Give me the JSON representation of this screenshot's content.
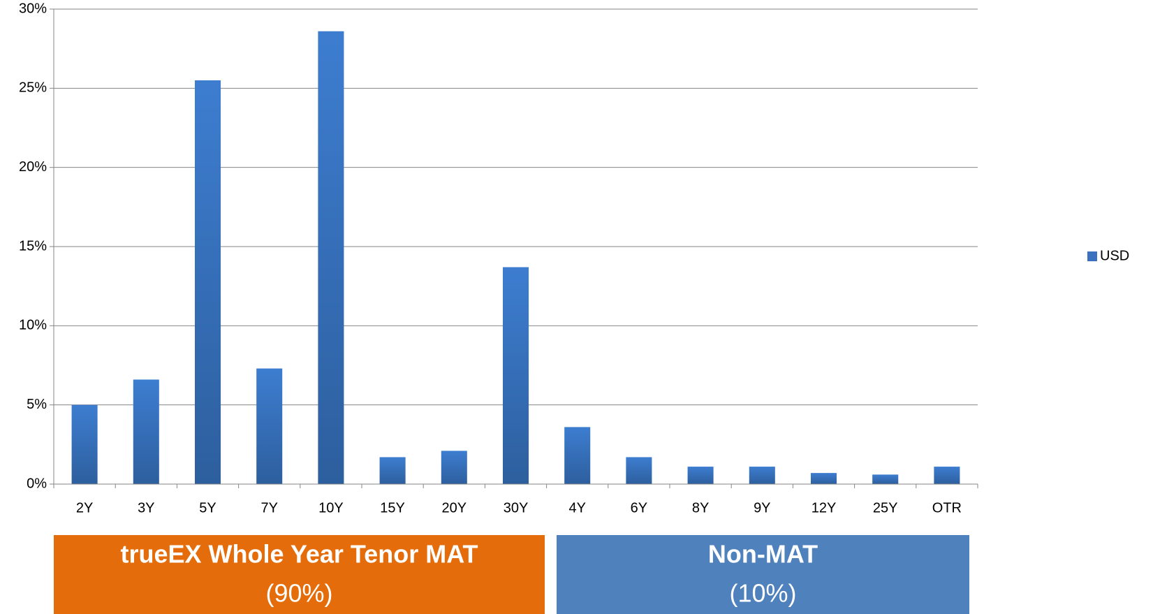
{
  "chart_data": {
    "type": "bar",
    "categories": [
      "2Y",
      "3Y",
      "5Y",
      "7Y",
      "10Y",
      "15Y",
      "20Y",
      "30Y",
      "4Y",
      "6Y",
      "8Y",
      "9Y",
      "12Y",
      "25Y",
      "OTR"
    ],
    "series": [
      {
        "name": "USD",
        "color": "#3a72c0",
        "values": [
          5.0,
          6.6,
          25.5,
          7.3,
          28.6,
          1.7,
          2.1,
          13.7,
          3.6,
          1.7,
          1.1,
          1.1,
          0.7,
          0.6,
          1.1
        ]
      }
    ],
    "ylim": [
      0,
      30
    ],
    "yticks": [
      {
        "value": 0,
        "label": "0%"
      },
      {
        "value": 5,
        "label": "5%"
      },
      {
        "value": 10,
        "label": "10%"
      },
      {
        "value": 15,
        "label": "15%"
      },
      {
        "value": 20,
        "label": "20%"
      },
      {
        "value": 25,
        "label": "25%"
      },
      {
        "value": 30,
        "label": "30%"
      }
    ],
    "grid": true,
    "legend": "right",
    "groups": [
      {
        "title": "trueEX Whole Year Tenor  MAT",
        "share": "(90%)",
        "color": "#e46c0a"
      },
      {
        "title": "Non-MAT",
        "share": "(10%)",
        "color": "#4f81bd"
      }
    ]
  }
}
